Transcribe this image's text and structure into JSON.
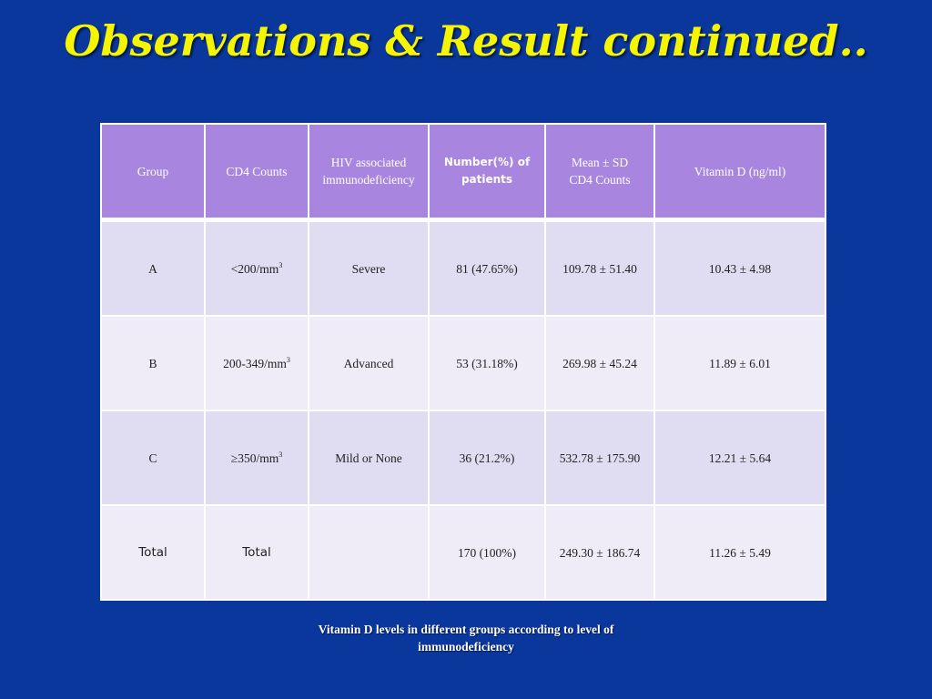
{
  "title": "Observations & Result continued..",
  "table": {
    "headers": {
      "group": "Group",
      "cd4": "CD4 Counts",
      "hiv_line1": "HIV associated",
      "hiv_line2": "immunodeficiency",
      "number_line1": "Number(%) of",
      "number_line2": "patients",
      "mean_line1": "Mean ± SD",
      "mean_line2": "CD4 Counts",
      "vitd": "Vitamin D (ng/ml)"
    },
    "rows": [
      {
        "group": "A",
        "cd4": "<200/mm",
        "cd4_sup": "3",
        "hiv": "Severe",
        "number": "81 (47.65%)",
        "mean": "109.78 ± 51.40",
        "vitd": "10.43 ± 4.98"
      },
      {
        "group": "B",
        "cd4": "200-349/mm",
        "cd4_sup": "3",
        "hiv": "Advanced",
        "number": "53 (31.18%)",
        "mean": "269.98 ± 45.24",
        "vitd": "11.89 ± 6.01"
      },
      {
        "group": "C",
        "cd4": "≥350/mm",
        "cd4_sup": "3",
        "hiv": "Mild or None",
        "number": "36 (21.2%)",
        "mean": "532.78 ± 175.90",
        "vitd": "12.21 ± 5.64"
      },
      {
        "group": "Total",
        "cd4": "Total",
        "hiv": "",
        "number": "170 (100%)",
        "mean": "249.30 ± 186.74",
        "vitd": "11.26 ± 5.49"
      }
    ]
  },
  "caption": {
    "line1": "Vitamin D levels in different groups according to level of",
    "line2": "immunodeficiency"
  }
}
